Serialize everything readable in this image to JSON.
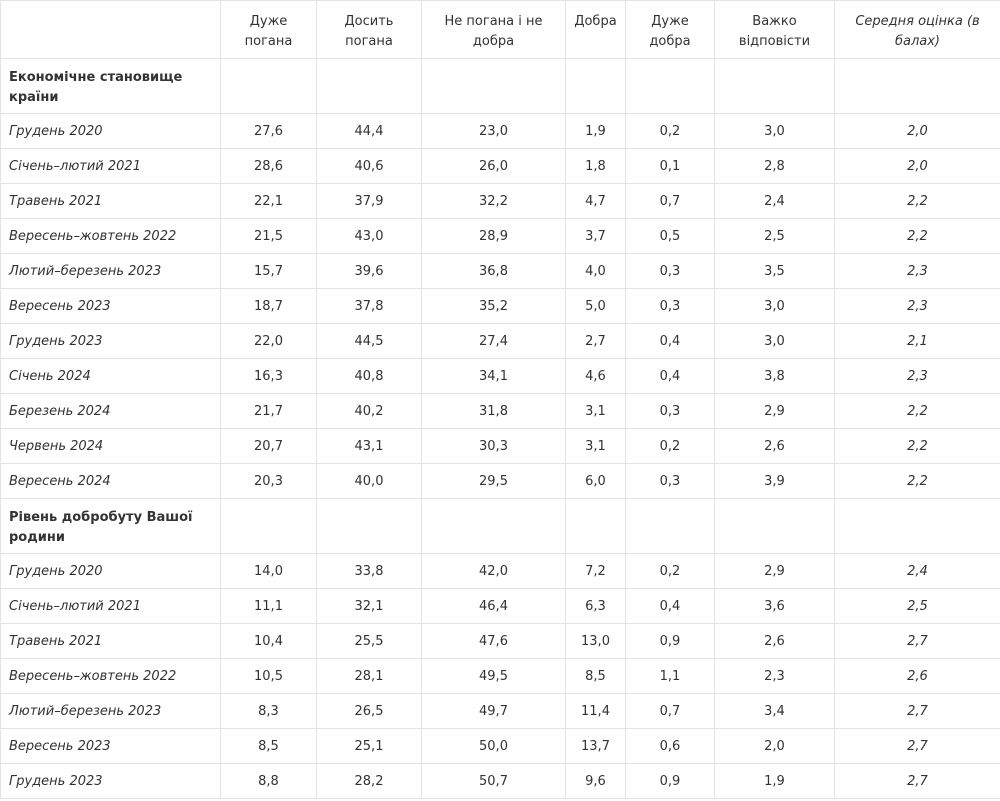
{
  "table": {
    "header": [
      "Дуже погана",
      "Досить погана",
      "Не погана і не добра",
      "Добра",
      "Дуже добра",
      "Важко відповісти",
      "Середня оцінка (в балах)"
    ],
    "sections": [
      {
        "title": "Економічне становище країни",
        "rows": [
          {
            "label": "Грудень 2020",
            "values": [
              "27,6",
              "44,4",
              "23,0",
              "1,9",
              "0,2",
              "3,0",
              "2,0"
            ]
          },
          {
            "label": "Січень–лютий 2021",
            "values": [
              "28,6",
              "40,6",
              "26,0",
              "1,8",
              "0,1",
              "2,8",
              "2,0"
            ]
          },
          {
            "label": "Травень 2021",
            "values": [
              "22,1",
              "37,9",
              "32,2",
              "4,7",
              "0,7",
              "2,4",
              "2,2"
            ]
          },
          {
            "label": "Вересень–жовтень 2022",
            "values": [
              "21,5",
              "43,0",
              "28,9",
              "3,7",
              "0,5",
              "2,5",
              "2,2"
            ]
          },
          {
            "label": "Лютий–березень 2023",
            "values": [
              "15,7",
              "39,6",
              "36,8",
              "4,0",
              "0,3",
              "3,5",
              "2,3"
            ]
          },
          {
            "label": "Вересень 2023",
            "values": [
              "18,7",
              "37,8",
              "35,2",
              "5,0",
              "0,3",
              "3,0",
              "2,3"
            ]
          },
          {
            "label": "Грудень 2023",
            "values": [
              "22,0",
              "44,5",
              "27,4",
              "2,7",
              "0,4",
              "3,0",
              "2,1"
            ]
          },
          {
            "label": "Січень 2024",
            "values": [
              "16,3",
              "40,8",
              "34,1",
              "4,6",
              "0,4",
              "3,8",
              "2,3"
            ]
          },
          {
            "label": "Березень 2024",
            "values": [
              "21,7",
              "40,2",
              "31,8",
              "3,1",
              "0,3",
              "2,9",
              "2,2"
            ]
          },
          {
            "label": "Червень 2024",
            "values": [
              "20,7",
              "43,1",
              "30,3",
              "3,1",
              "0,2",
              "2,6",
              "2,2"
            ]
          },
          {
            "label": "Вересень 2024",
            "values": [
              "20,3",
              "40,0",
              "29,5",
              "6,0",
              "0,3",
              "3,9",
              "2,2"
            ]
          }
        ]
      },
      {
        "title": "Рівень добробуту Вашої родини",
        "rows": [
          {
            "label": "Грудень 2020",
            "values": [
              "14,0",
              "33,8",
              "42,0",
              "7,2",
              "0,2",
              "2,9",
              "2,4"
            ]
          },
          {
            "label": "Січень–лютий 2021",
            "values": [
              "11,1",
              "32,1",
              "46,4",
              "6,3",
              "0,4",
              "3,6",
              "2,5"
            ]
          },
          {
            "label": "Травень 2021",
            "values": [
              "10,4",
              "25,5",
              "47,6",
              "13,0",
              "0,9",
              "2,6",
              "2,7"
            ]
          },
          {
            "label": "Вересень–жовтень 2022",
            "values": [
              "10,5",
              "28,1",
              "49,5",
              "8,5",
              "1,1",
              "2,3",
              "2,6"
            ]
          },
          {
            "label": "Лютий–березень 2023",
            "values": [
              "8,3",
              "26,5",
              "49,7",
              "11,4",
              "0,7",
              "3,4",
              "2,7"
            ]
          },
          {
            "label": "Вересень 2023",
            "values": [
              "8,5",
              "25,1",
              "50,0",
              "13,7",
              "0,6",
              "2,0",
              "2,7"
            ]
          },
          {
            "label": "Грудень 2023",
            "values": [
              "8,8",
              "28,2",
              "50,7",
              "9,6",
              "0,9",
              "1,9",
              "2,7"
            ]
          }
        ]
      }
    ]
  }
}
